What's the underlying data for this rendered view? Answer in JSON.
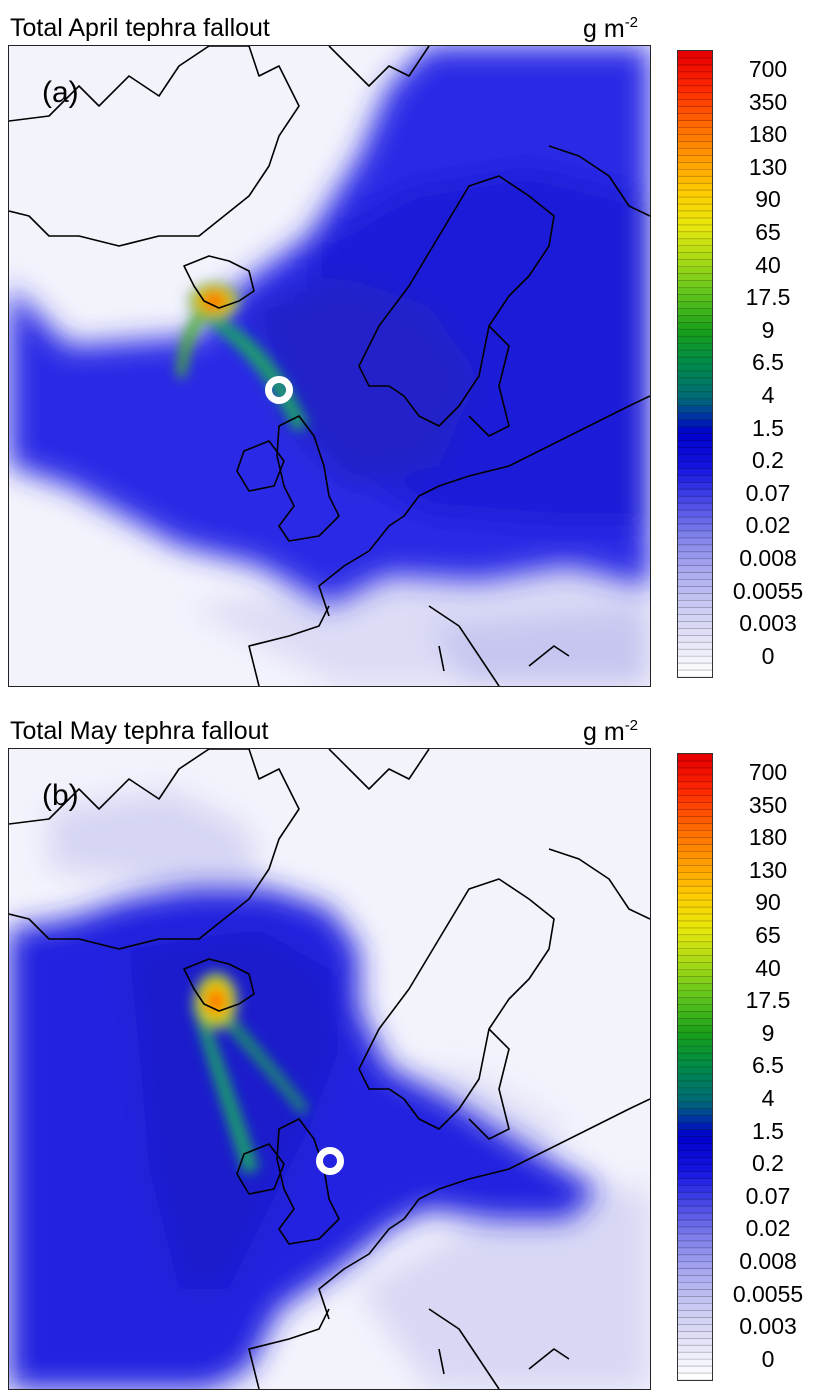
{
  "figure": {
    "units": {
      "base": "g m",
      "exponent": "-2"
    },
    "colorbar_ticks": [
      "700",
      "350",
      "180",
      "130",
      "90",
      "65",
      "40",
      "17.5",
      "9",
      "6.5",
      "4",
      "1.5",
      "0.2",
      "0.07",
      "0.02",
      "0.008",
      "0.0055",
      "0.003",
      "0"
    ],
    "colorbar_colors": [
      "#ffffff",
      "#e3e3f7",
      "#c9c9f2",
      "#a9a9ef",
      "#8181ea",
      "#4a4ae6",
      "#1414e0",
      "#0000cc",
      "#006a78",
      "#008a4a",
      "#1aa01a",
      "#5cc31c",
      "#a6d916",
      "#e8e80c",
      "#ffcc00",
      "#ff9a00",
      "#ff6600",
      "#ff2a00",
      "#e60000"
    ]
  },
  "panels": [
    {
      "title": "Total April tephra fallout",
      "label": "(a)",
      "marker_name": "marker-april"
    },
    {
      "title": "Total May tephra fallout",
      "label": "(b)",
      "marker_name": "marker-may"
    }
  ]
}
